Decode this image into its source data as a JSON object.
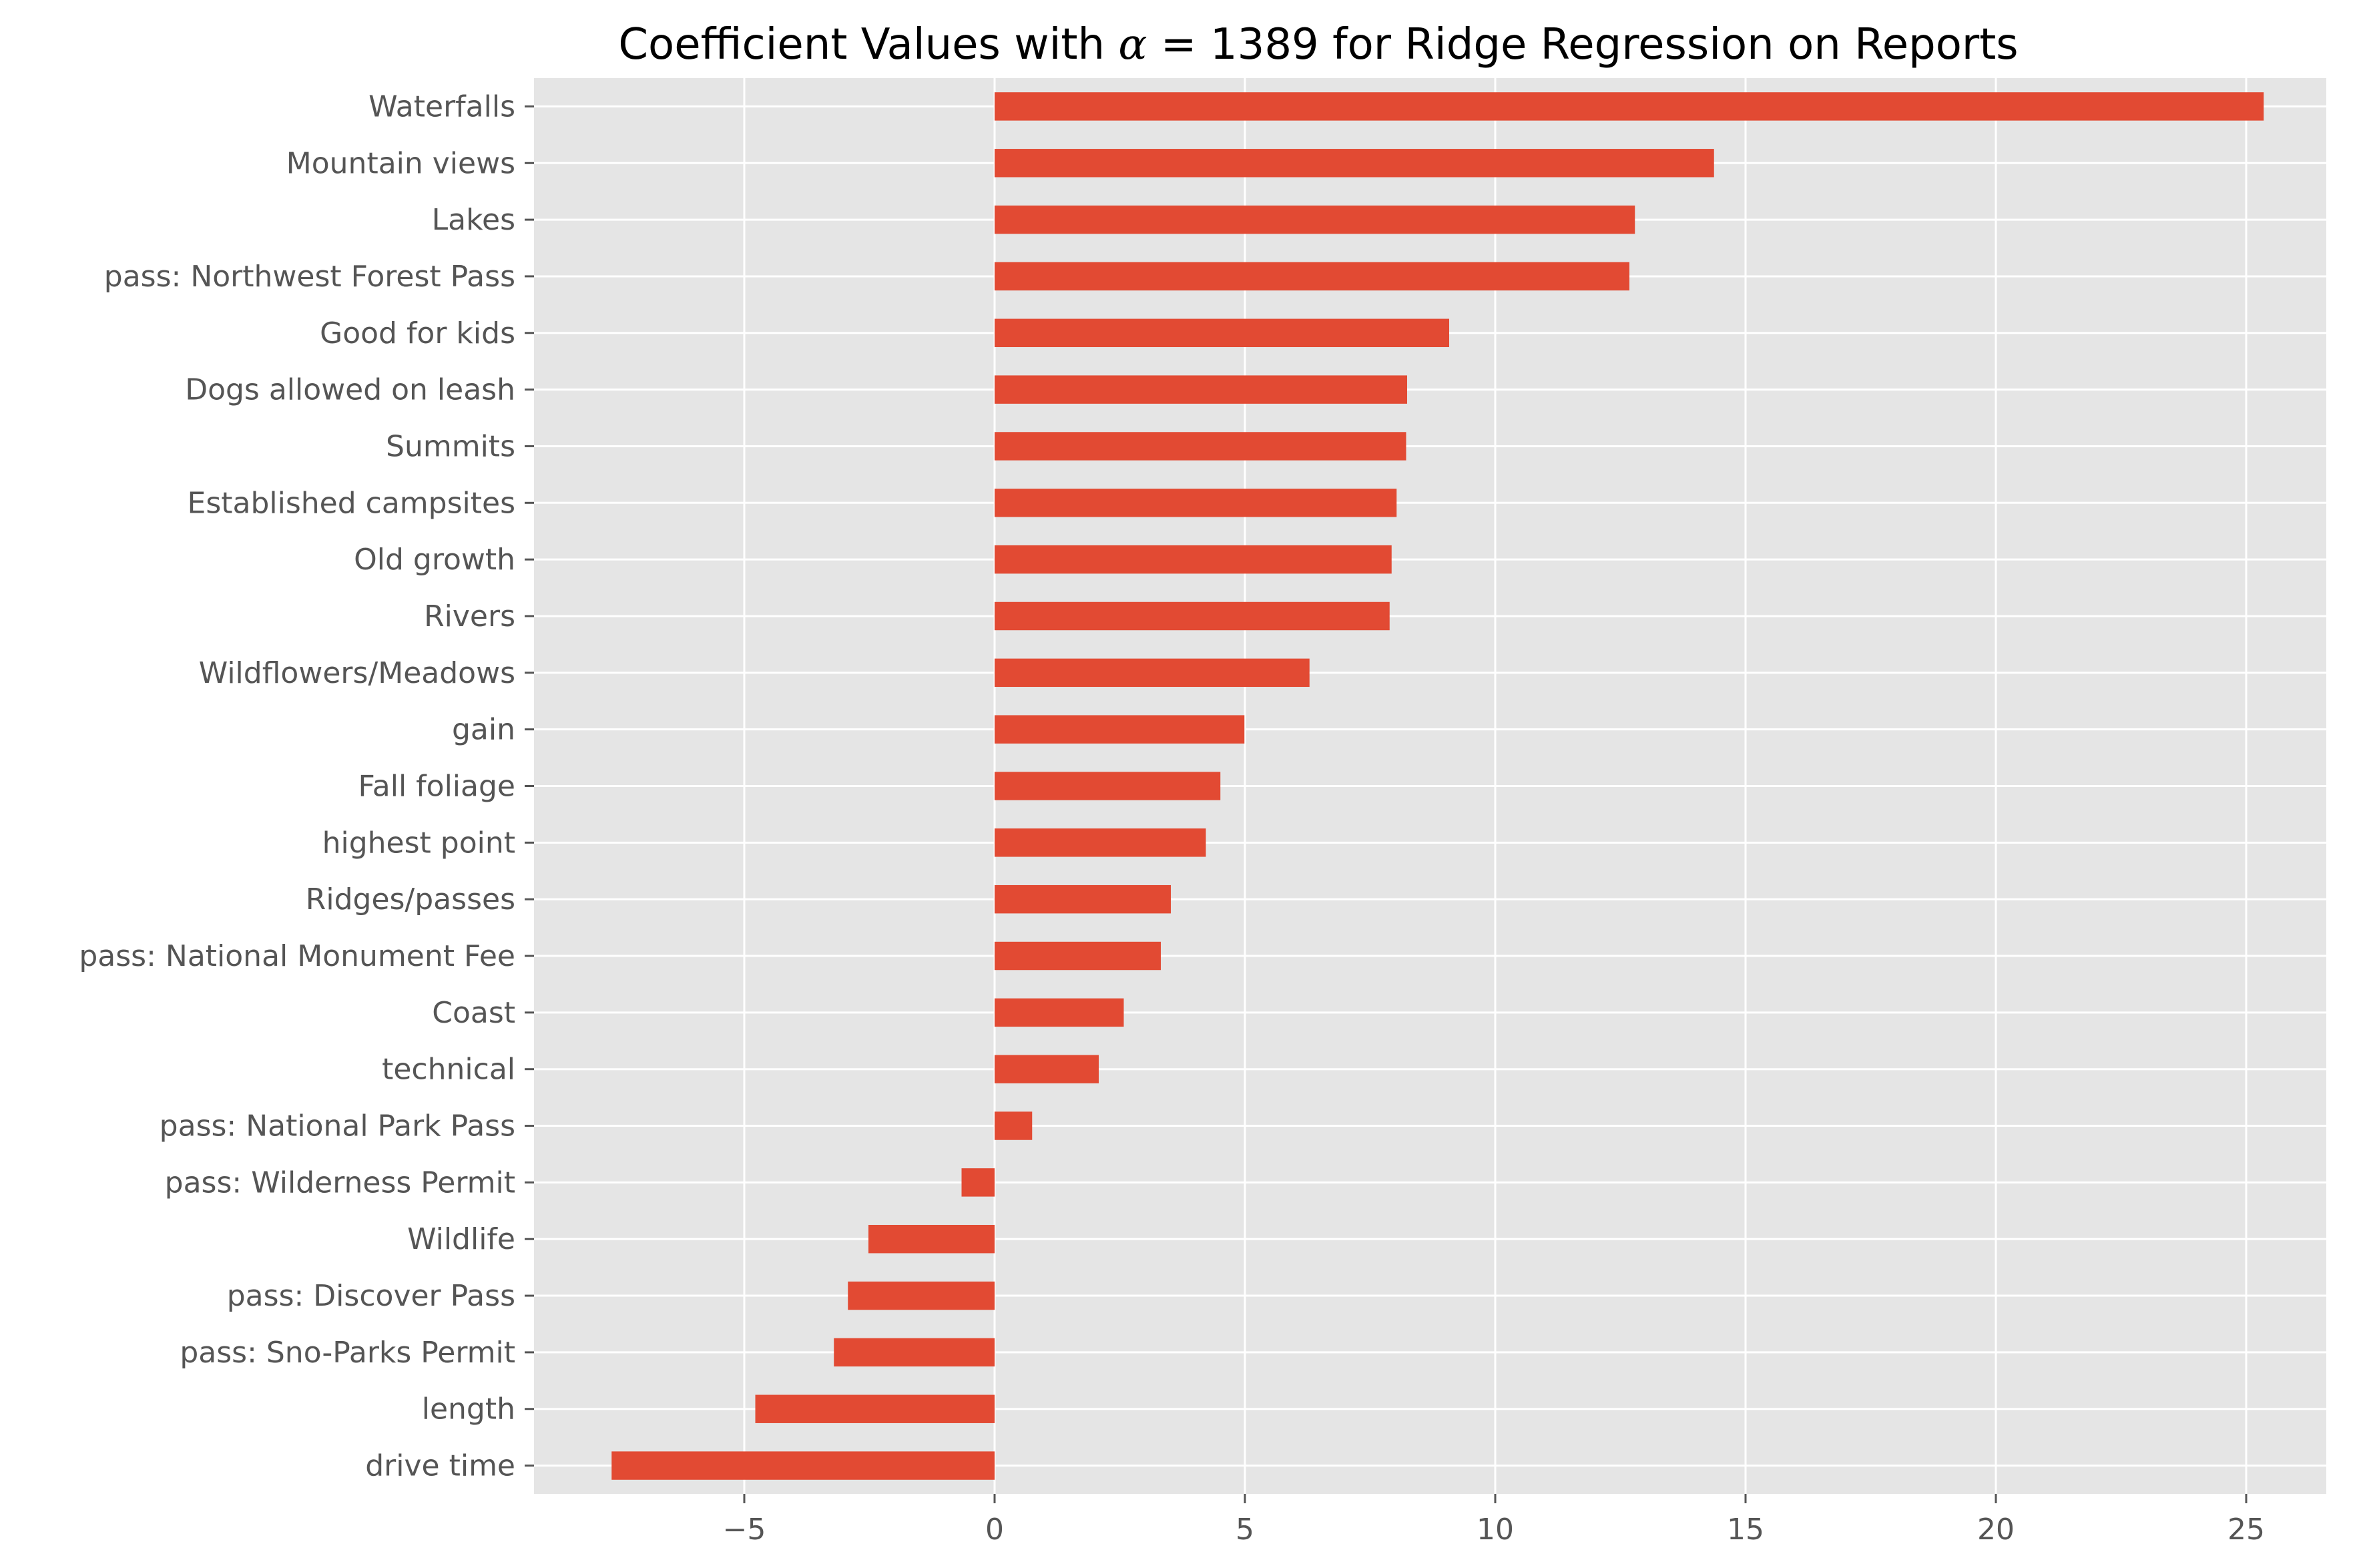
{
  "chart_data": {
    "type": "bar",
    "orientation": "horizontal",
    "title": {
      "prefix": "Coefficient Values with ",
      "symbol": "α",
      "suffix": " = 1389 for Ridge Regression on Reports"
    },
    "xlabel": "",
    "ylabel": "",
    "xlim": [
      -9.2,
      26.6
    ],
    "xticks": [
      -5,
      0,
      5,
      10,
      15,
      20,
      25
    ],
    "xtick_labels": [
      "−5",
      "0",
      "5",
      "10",
      "15",
      "20",
      "25"
    ],
    "grid": true,
    "legend": "none",
    "bar_color": "#E24A33",
    "background_color": "#E5E5E5",
    "categories": [
      "Waterfalls",
      "Mountain views",
      "Lakes",
      "pass: Northwest Forest Pass",
      "Good for kids",
      "Dogs allowed on leash",
      "Summits",
      "Established campsites",
      "Old growth",
      "Rivers",
      "Wildflowers/Meadows",
      "gain",
      "Fall foliage",
      "highest point",
      "Ridges/passes",
      "pass: National Monument Fee",
      "Coast",
      "technical",
      "pass: National Park Pass",
      "pass: Wilderness Permit",
      "Wildlife",
      "pass: Discover Pass",
      "pass: Sno-Parks Permit",
      "length",
      "drive time"
    ],
    "values": [
      25.35,
      14.37,
      12.79,
      12.68,
      9.08,
      8.24,
      8.22,
      8.03,
      7.93,
      7.89,
      6.29,
      4.99,
      4.51,
      4.22,
      3.52,
      3.32,
      2.58,
      2.08,
      0.75,
      -0.66,
      -2.52,
      -2.93,
      -3.21,
      -4.78,
      -7.65
    ]
  }
}
